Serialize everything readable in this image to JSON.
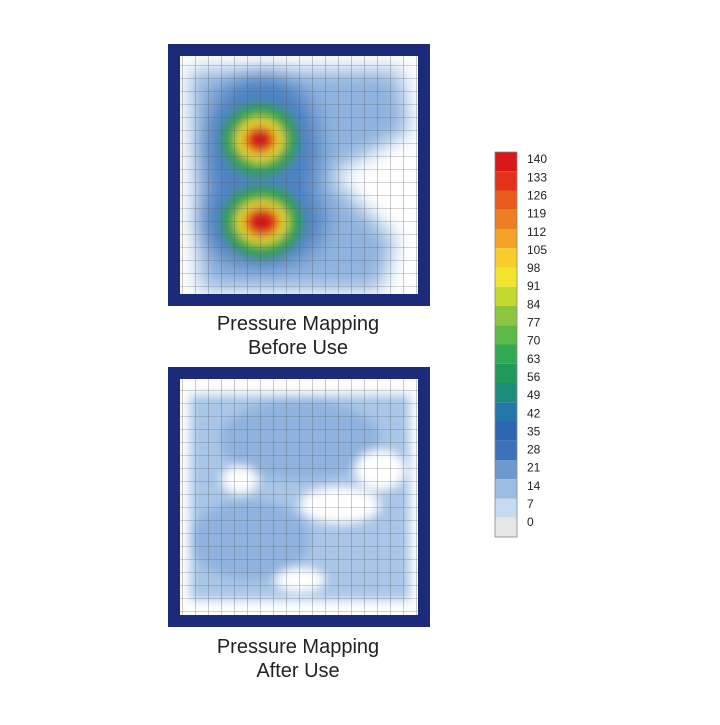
{
  "maps": [
    {
      "caption_line1": "Pressure Mapping",
      "caption_line2": "Before Use"
    },
    {
      "caption_line1": "Pressure Mapping",
      "caption_line2": "After Use"
    }
  ],
  "legend": {
    "labels": [
      "140",
      "133",
      "126",
      "119",
      "112",
      "105",
      "98",
      "91",
      "84",
      "77",
      "70",
      "63",
      "56",
      "49",
      "42",
      "35",
      "28",
      "21",
      "14",
      "7",
      "0"
    ],
    "colors": [
      "#d7191c",
      "#e2321c",
      "#ea5a1e",
      "#ef7d22",
      "#f4a326",
      "#f7cb2a",
      "#f2e52c",
      "#c4d92e",
      "#8cc63f",
      "#5cb947",
      "#33a852",
      "#1f9a5a",
      "#1b8e7a",
      "#2277a8",
      "#2d66b0",
      "#3d72bb",
      "#6d99cf",
      "#9cbde1",
      "#c7daef",
      "#e6e6e6"
    ]
  }
}
